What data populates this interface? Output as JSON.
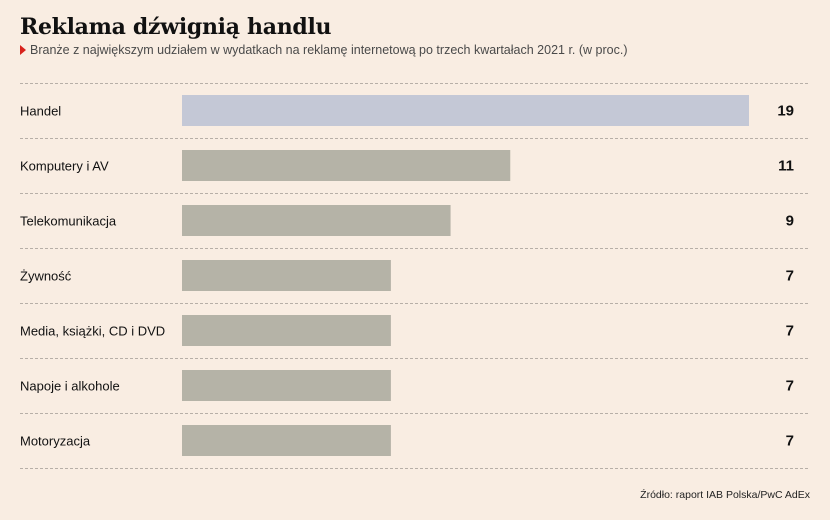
{
  "title": "Reklama dźwignią handlu",
  "subtitle": "Branże z największym udziałem w wydatkach na reklamę internetową po trzech kwartałach 2021 r. (w proc.)",
  "source": "Źródło: raport IAB Polska/PwC AdEx",
  "colors": {
    "highlight_bar": "#c4c8d6",
    "bar": "#b5b3a7",
    "background": "#f9ede2",
    "gridline": "#b7afa7",
    "marker": "#d8231c"
  },
  "chart_data": {
    "type": "bar",
    "orientation": "horizontal",
    "title": "Reklama dźwignią handlu",
    "subtitle": "Branże z największym udziałem w wydatkach na reklamę internetową po trzech kwartałach 2021 r. (w proc.)",
    "categories": [
      "Handel",
      "Komputery i AV",
      "Telekomunikacja",
      "Żywność",
      "Media, książki, CD i DVD",
      "Napoje i alkohole",
      "Motoryzacja"
    ],
    "values": [
      19,
      11,
      9,
      7,
      7,
      7,
      7
    ],
    "value_labels": [
      "19",
      "11",
      "9",
      "7",
      "7",
      "7",
      "7"
    ],
    "highlight_index": 0,
    "xlim": [
      0,
      19
    ],
    "grid": "dashed horizontal separators",
    "legend": "none"
  }
}
